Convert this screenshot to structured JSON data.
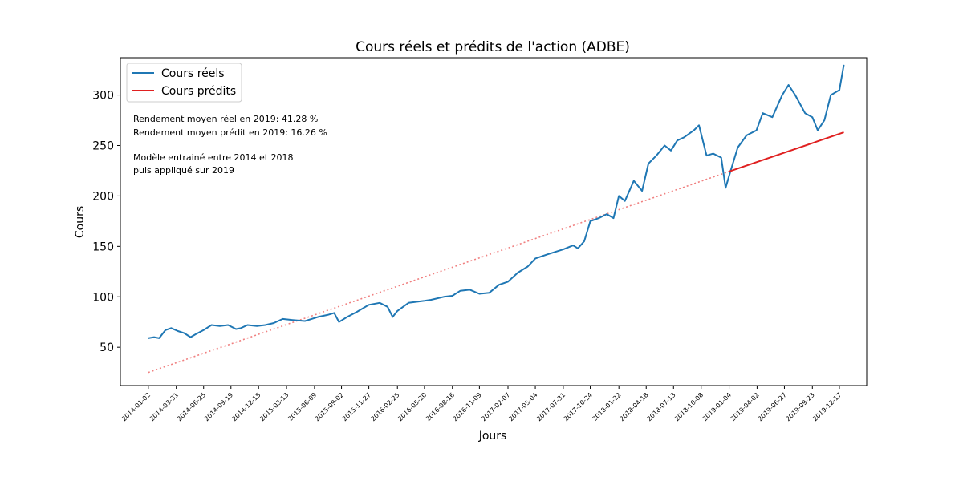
{
  "chart_data": {
    "type": "line",
    "title": "Cours réels et prédits de l'action (ADBE)",
    "xlabel": "Jours",
    "ylabel": "Cours",
    "ylim": [
      12,
      337
    ],
    "yticks": [
      50,
      100,
      150,
      200,
      250,
      300
    ],
    "grid": false,
    "legend_position": "top-left",
    "xlim": [
      "2013-10-06",
      "2020-03-12"
    ],
    "xticks": [
      "2014-01-02",
      "2014-03-31",
      "2014-06-25",
      "2014-09-19",
      "2014-12-15",
      "2015-03-13",
      "2015-06-09",
      "2015-09-02",
      "2015-11-27",
      "2016-02-25",
      "2016-05-20",
      "2016-08-16",
      "2016-11-09",
      "2017-02-07",
      "2017-05-04",
      "2017-07-31",
      "2017-10-24",
      "2018-01-22",
      "2018-04-18",
      "2018-07-13",
      "2018-10-08",
      "2019-01-04",
      "2019-04-02",
      "2019-06-27",
      "2019-09-23",
      "2019-12-17"
    ],
    "series": [
      {
        "name": "Cours réels",
        "color": "#1f77b4",
        "style": "solid",
        "points": [
          [
            "2014-01-02",
            59
          ],
          [
            "2014-01-20",
            60
          ],
          [
            "2014-02-05",
            59
          ],
          [
            "2014-02-25",
            67
          ],
          [
            "2014-03-15",
            69
          ],
          [
            "2014-04-05",
            66
          ],
          [
            "2014-04-25",
            64
          ],
          [
            "2014-05-15",
            60
          ],
          [
            "2014-06-01",
            63
          ],
          [
            "2014-06-25",
            67
          ],
          [
            "2014-07-20",
            72
          ],
          [
            "2014-08-15",
            71
          ],
          [
            "2014-09-10",
            72
          ],
          [
            "2014-10-05",
            68
          ],
          [
            "2014-10-20",
            69
          ],
          [
            "2014-11-10",
            72
          ],
          [
            "2014-12-10",
            71
          ],
          [
            "2015-01-05",
            72
          ],
          [
            "2015-02-01",
            74
          ],
          [
            "2015-03-01",
            78
          ],
          [
            "2015-04-01",
            77
          ],
          [
            "2015-05-10",
            76
          ],
          [
            "2015-06-20",
            80
          ],
          [
            "2015-07-20",
            82
          ],
          [
            "2015-08-10",
            84
          ],
          [
            "2015-08-25",
            75
          ],
          [
            "2015-09-20",
            80
          ],
          [
            "2015-10-20",
            85
          ],
          [
            "2015-11-27",
            92
          ],
          [
            "2015-12-31",
            94
          ],
          [
            "2016-01-25",
            90
          ],
          [
            "2016-02-10",
            80
          ],
          [
            "2016-02-25",
            86
          ],
          [
            "2016-03-31",
            94
          ],
          [
            "2016-05-20",
            96
          ],
          [
            "2016-06-10",
            97
          ],
          [
            "2016-07-20",
            100
          ],
          [
            "2016-08-16",
            101
          ],
          [
            "2016-09-10",
            106
          ],
          [
            "2016-10-10",
            107
          ],
          [
            "2016-11-09",
            103
          ],
          [
            "2016-12-10",
            104
          ],
          [
            "2017-01-10",
            112
          ],
          [
            "2017-02-07",
            115
          ],
          [
            "2017-03-10",
            124
          ],
          [
            "2017-04-10",
            130
          ],
          [
            "2017-05-04",
            138
          ],
          [
            "2017-06-10",
            142
          ],
          [
            "2017-07-31",
            147
          ],
          [
            "2017-08-31",
            151
          ],
          [
            "2017-09-15",
            148
          ],
          [
            "2017-10-05",
            155
          ],
          [
            "2017-10-24",
            175
          ],
          [
            "2017-11-20",
            178
          ],
          [
            "2017-12-15",
            182
          ],
          [
            "2018-01-05",
            178
          ],
          [
            "2018-01-22",
            200
          ],
          [
            "2018-02-10",
            195
          ],
          [
            "2018-03-10",
            215
          ],
          [
            "2018-04-05",
            205
          ],
          [
            "2018-04-25",
            232
          ],
          [
            "2018-05-20",
            240
          ],
          [
            "2018-06-15",
            250
          ],
          [
            "2018-07-05",
            245
          ],
          [
            "2018-07-25",
            255
          ],
          [
            "2018-08-15",
            258
          ],
          [
            "2018-09-15",
            265
          ],
          [
            "2018-10-01",
            270
          ],
          [
            "2018-10-25",
            240
          ],
          [
            "2018-11-15",
            242
          ],
          [
            "2018-12-10",
            238
          ],
          [
            "2018-12-24",
            208
          ],
          [
            "2019-01-04",
            220
          ],
          [
            "2019-01-31",
            248
          ],
          [
            "2019-02-28",
            260
          ],
          [
            "2019-03-31",
            265
          ],
          [
            "2019-04-20",
            282
          ],
          [
            "2019-05-20",
            278
          ],
          [
            "2019-06-20",
            300
          ],
          [
            "2019-07-10",
            310
          ],
          [
            "2019-07-31",
            300
          ],
          [
            "2019-08-31",
            282
          ],
          [
            "2019-09-23",
            278
          ],
          [
            "2019-10-10",
            265
          ],
          [
            "2019-10-31",
            275
          ],
          [
            "2019-11-20",
            300
          ],
          [
            "2019-12-17",
            305
          ],
          [
            "2019-12-31",
            330
          ]
        ]
      },
      {
        "name": "Cours prédits",
        "color": "#e02020",
        "style": "solid",
        "points": [
          [
            "2019-01-02",
            224
          ],
          [
            "2019-12-31",
            263
          ]
        ]
      },
      {
        "color": "#f08080",
        "style": "dotted",
        "points": [
          [
            "2014-01-02",
            25
          ],
          [
            "2019-01-02",
            224
          ]
        ]
      }
    ],
    "annotations": [
      "Rendement moyen réel en 2019: 41.28 %",
      "Rendement moyen prédit en 2019: 16.26 %",
      "Modèle entrainé entre 2014 et 2018",
      "puis appliqué sur 2019"
    ]
  }
}
